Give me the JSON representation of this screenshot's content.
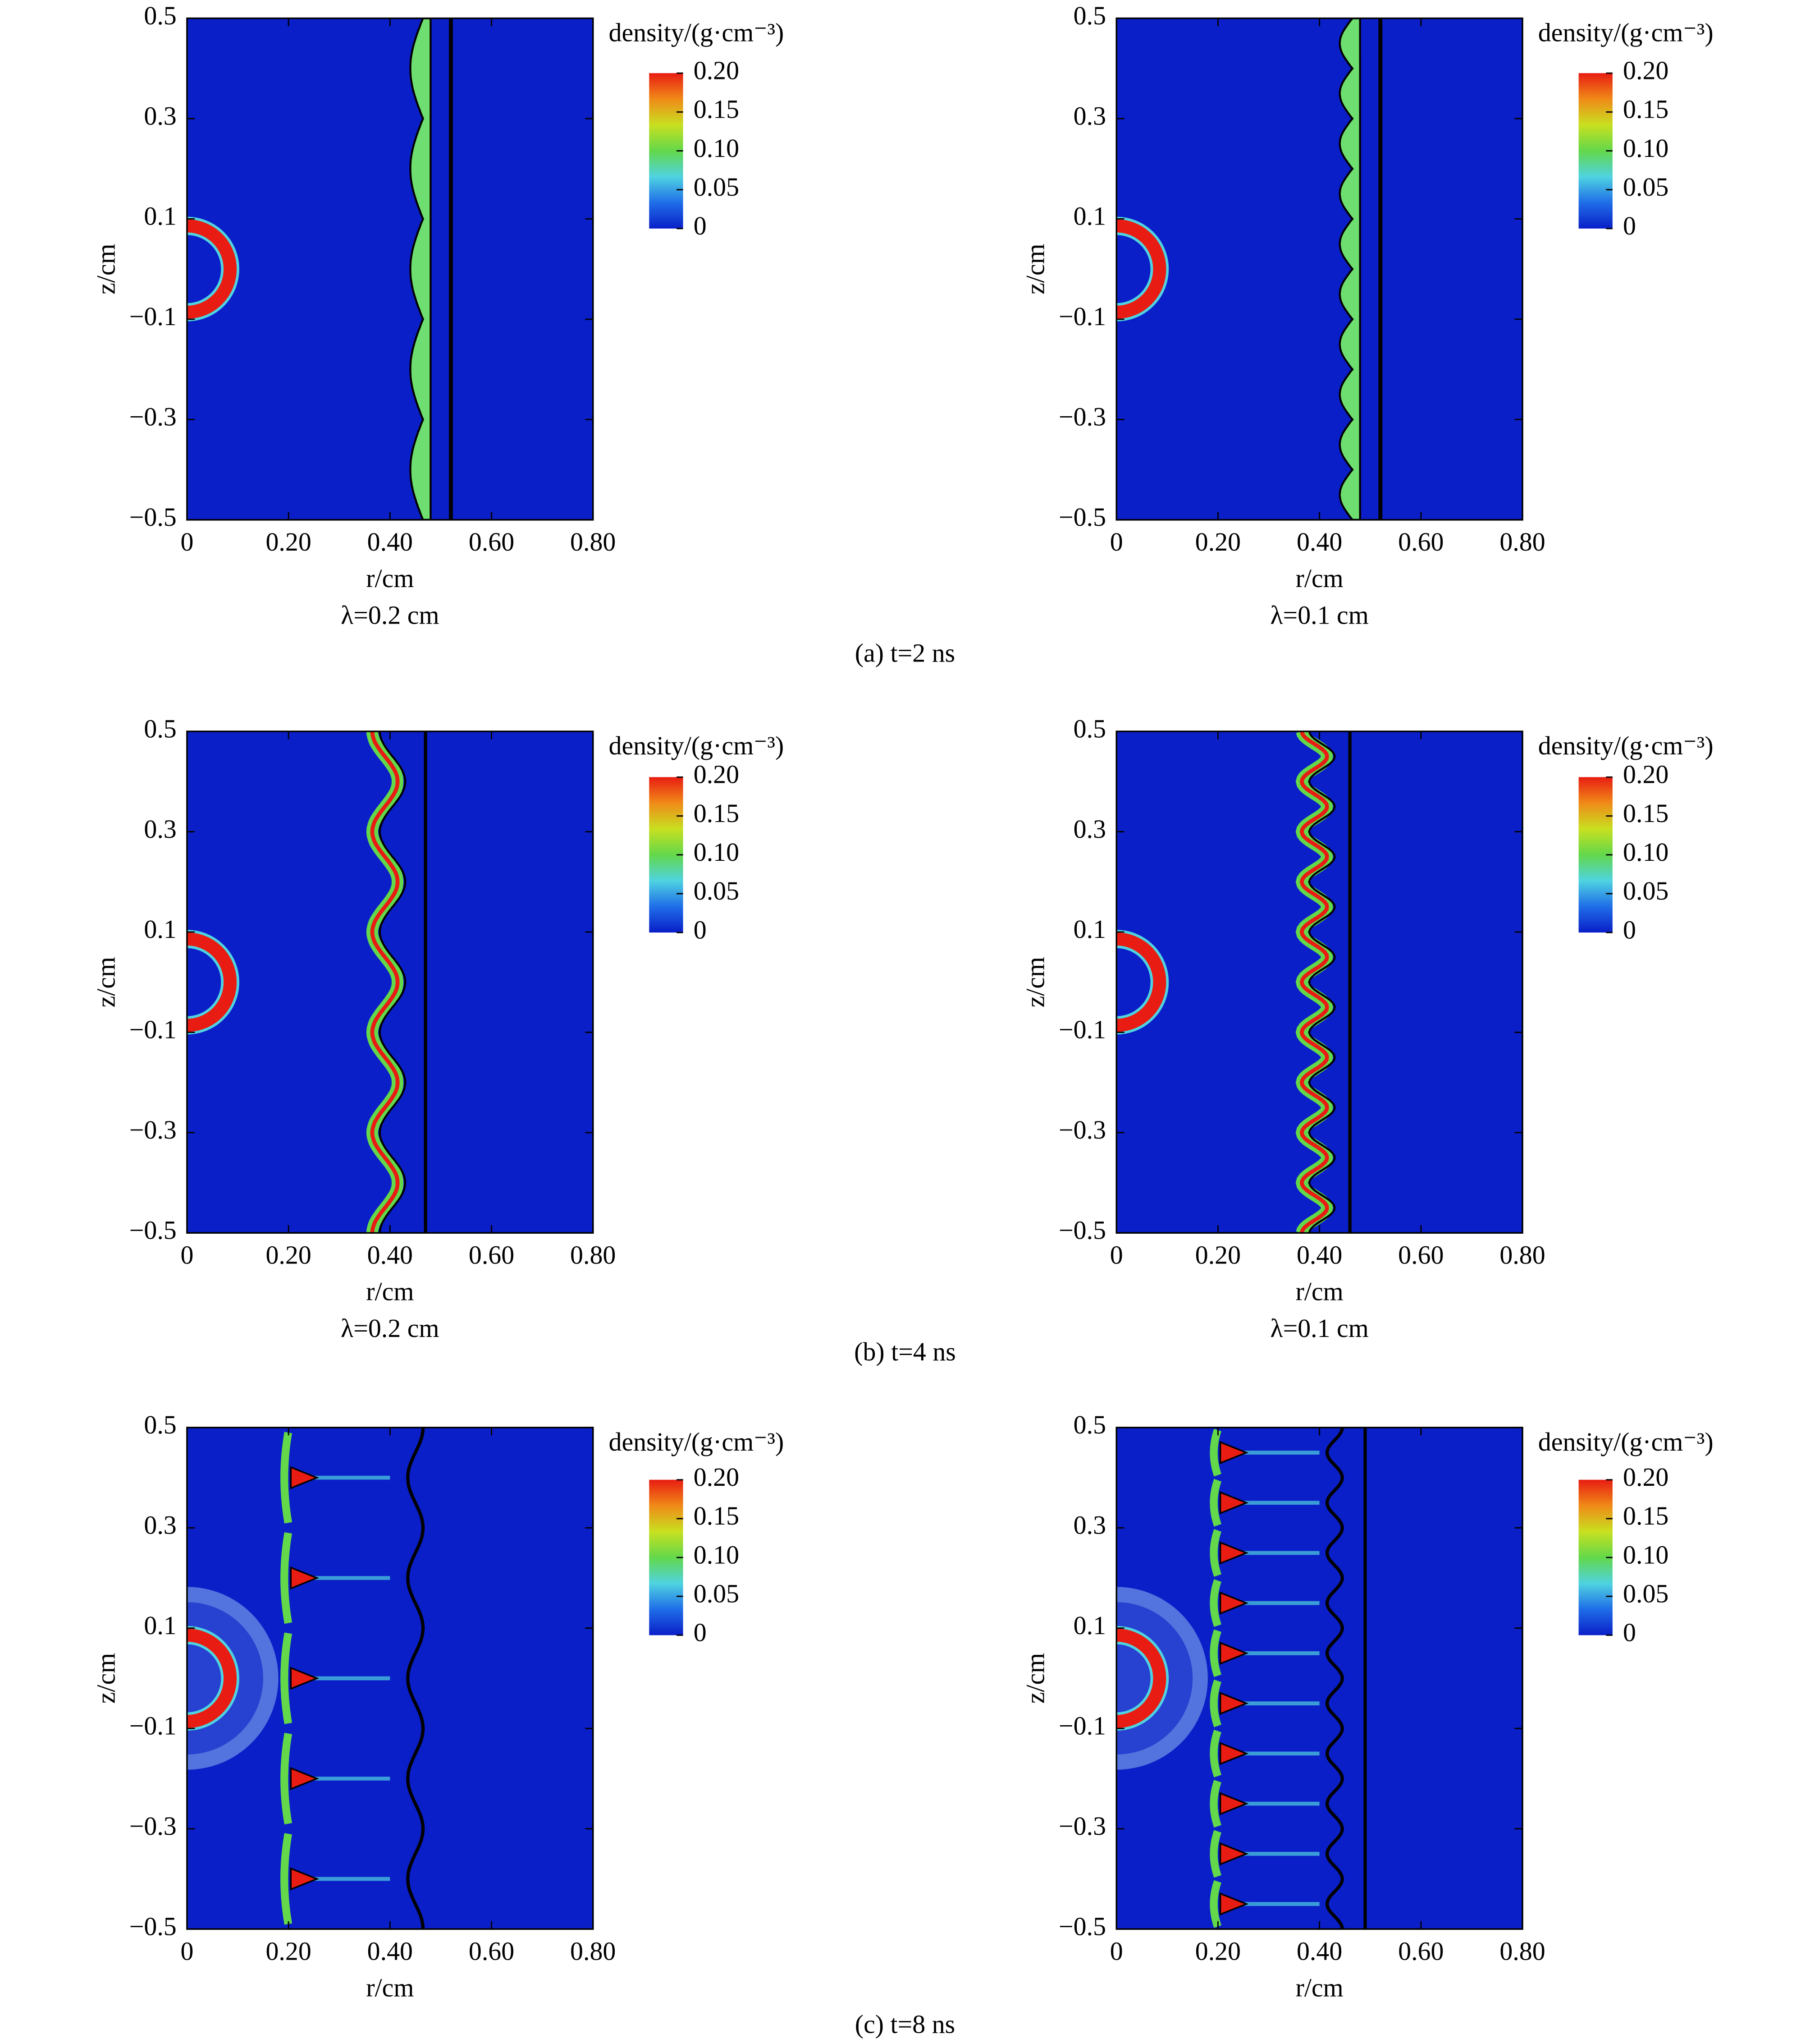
{
  "chart_data": [
    {
      "type": "heatmap",
      "xlabel": "r/cm",
      "ylabel": "z/cm",
      "subtitle": "λ=0.2 cm",
      "xlim": [
        0,
        0.8
      ],
      "xticks": [
        0,
        {
          "value": 0.2,
          "label": "0.20"
        },
        {
          "value": 0.4,
          "label": "0.40"
        },
        {
          "value": 0.6,
          "label": "0.60"
        },
        {
          "value": 0.8,
          "label": "0.80"
        }
      ],
      "ylim": [
        -0.5,
        0.5
      ],
      "yticks": [
        {
          "value": -0.5,
          "label": "−0.5"
        },
        {
          "value": -0.3,
          "label": "−0.3"
        },
        {
          "value": -0.1,
          "label": "−0.1"
        },
        0.1,
        0.3,
        0.5
      ],
      "colorbar": {
        "title": "density/(g·cm⁻³)",
        "lim": [
          0,
          0.2
        ],
        "ticks": [
          0,
          0.05,
          {
            "value": 0.1,
            "label": "0.10"
          },
          0.15,
          {
            "value": 0.2,
            "label": "0.20"
          }
        ],
        "colormap": [
          "#0a1fc8",
          "#1f6ee8",
          "#4fd3e0",
          "#63d84a",
          "#c8e020",
          "#f08a18",
          "#e81c12"
        ]
      }
    },
    {
      "type": "heatmap",
      "xlabel": "r/cm",
      "ylabel": "z/cm",
      "subtitle": "λ=0.1 cm",
      "xlim": [
        0,
        0.8
      ],
      "xticks": [
        0,
        {
          "value": 0.2,
          "label": "0.20"
        },
        {
          "value": 0.4,
          "label": "0.40"
        },
        {
          "value": 0.6,
          "label": "0.60"
        },
        {
          "value": 0.8,
          "label": "0.80"
        }
      ],
      "ylim": [
        -0.5,
        0.5
      ],
      "yticks": [
        {
          "value": -0.5,
          "label": "−0.5"
        },
        {
          "value": -0.3,
          "label": "−0.3"
        },
        {
          "value": -0.1,
          "label": "−0.1"
        },
        0.1,
        0.3,
        0.5
      ],
      "colorbar": {
        "title": "density/(g·cm⁻³)",
        "lim": [
          0,
          0.2
        ],
        "ticks": [
          0,
          0.05,
          {
            "value": 0.1,
            "label": "0.10"
          },
          0.15,
          {
            "value": 0.2,
            "label": "0.20"
          }
        ],
        "colormap": [
          "#0a1fc8",
          "#1f6ee8",
          "#4fd3e0",
          "#63d84a",
          "#c8e020",
          "#f08a18",
          "#e81c12"
        ]
      }
    },
    {
      "type": "heatmap",
      "xlabel": "r/cm",
      "ylabel": "z/cm",
      "subtitle": "λ=0.2 cm",
      "xlim": [
        0,
        0.8
      ],
      "xticks": [
        0,
        {
          "value": 0.2,
          "label": "0.20"
        },
        {
          "value": 0.4,
          "label": "0.40"
        },
        {
          "value": 0.6,
          "label": "0.60"
        },
        {
          "value": 0.8,
          "label": "0.80"
        }
      ],
      "ylim": [
        -0.5,
        0.5
      ],
      "yticks": [
        {
          "value": -0.5,
          "label": "−0.5"
        },
        {
          "value": -0.3,
          "label": "−0.3"
        },
        {
          "value": -0.1,
          "label": "−0.1"
        },
        0.1,
        0.3,
        0.5
      ],
      "colorbar": {
        "title": "density/(g·cm⁻³)",
        "lim": [
          0,
          0.2
        ],
        "ticks": [
          0,
          0.05,
          {
            "value": 0.1,
            "label": "0.10"
          },
          0.15,
          {
            "value": 0.2,
            "label": "0.20"
          }
        ],
        "colormap": [
          "#0a1fc8",
          "#1f6ee8",
          "#4fd3e0",
          "#63d84a",
          "#c8e020",
          "#f08a18",
          "#e81c12"
        ]
      }
    },
    {
      "type": "heatmap",
      "xlabel": "r/cm",
      "ylabel": "z/cm",
      "subtitle": "λ=0.1 cm",
      "xlim": [
        0,
        0.8
      ],
      "xticks": [
        0,
        {
          "value": 0.2,
          "label": "0.20"
        },
        {
          "value": 0.4,
          "label": "0.40"
        },
        {
          "value": 0.6,
          "label": "0.60"
        },
        {
          "value": 0.8,
          "label": "0.80"
        }
      ],
      "ylim": [
        -0.5,
        0.5
      ],
      "yticks": [
        {
          "value": -0.5,
          "label": "−0.5"
        },
        {
          "value": -0.3,
          "label": "−0.3"
        },
        {
          "value": -0.1,
          "label": "−0.1"
        },
        0.1,
        0.3,
        0.5
      ],
      "colorbar": {
        "title": "density/(g·cm⁻³)",
        "lim": [
          0,
          0.2
        ],
        "ticks": [
          0,
          0.05,
          {
            "value": 0.1,
            "label": "0.10"
          },
          0.15,
          {
            "value": 0.2,
            "label": "0.20"
          }
        ],
        "colormap": [
          "#0a1fc8",
          "#1f6ee8",
          "#4fd3e0",
          "#63d84a",
          "#c8e020",
          "#f08a18",
          "#e81c12"
        ]
      }
    },
    {
      "type": "heatmap",
      "xlabel": "r/cm",
      "ylabel": "z/cm",
      "xlim": [
        0,
        0.8
      ],
      "xticks": [
        0,
        {
          "value": 0.2,
          "label": "0.20"
        },
        {
          "value": 0.4,
          "label": "0.40"
        },
        {
          "value": 0.6,
          "label": "0.60"
        },
        {
          "value": 0.8,
          "label": "0.80"
        }
      ],
      "ylim": [
        -0.5,
        0.5
      ],
      "yticks": [
        {
          "value": -0.5,
          "label": "−0.5"
        },
        {
          "value": -0.3,
          "label": "−0.3"
        },
        {
          "value": -0.1,
          "label": "−0.1"
        },
        0.1,
        0.3,
        0.5
      ],
      "colorbar": {
        "title": "density/(g·cm⁻³)",
        "lim": [
          0,
          0.2
        ],
        "ticks": [
          0,
          0.05,
          {
            "value": 0.1,
            "label": "0.10"
          },
          0.15,
          {
            "value": 0.2,
            "label": "0.20"
          }
        ],
        "colormap": [
          "#0a1fc8",
          "#1f6ee8",
          "#4fd3e0",
          "#63d84a",
          "#c8e020",
          "#f08a18",
          "#e81c12"
        ]
      }
    },
    {
      "type": "heatmap",
      "xlabel": "r/cm",
      "ylabel": "z/cm",
      "xlim": [
        0,
        0.8
      ],
      "xticks": [
        0,
        {
          "value": 0.2,
          "label": "0.20"
        },
        {
          "value": 0.4,
          "label": "0.40"
        },
        {
          "value": 0.6,
          "label": "0.60"
        },
        {
          "value": 0.8,
          "label": "0.80"
        }
      ],
      "ylim": [
        -0.5,
        0.5
      ],
      "yticks": [
        {
          "value": -0.5,
          "label": "−0.5"
        },
        {
          "value": -0.3,
          "label": "−0.3"
        },
        {
          "value": -0.1,
          "label": "−0.1"
        },
        0.1,
        0.3,
        0.5
      ],
      "colorbar": {
        "title": "density/(g·cm⁻³)",
        "lim": [
          0,
          0.2
        ],
        "ticks": [
          0,
          0.05,
          {
            "value": 0.1,
            "label": "0.10"
          },
          0.15,
          {
            "value": 0.2,
            "label": "0.20"
          }
        ],
        "colormap": [
          "#0a1fc8",
          "#1f6ee8",
          "#4fd3e0",
          "#63d84a",
          "#c8e020",
          "#f08a18",
          "#e81c12"
        ]
      }
    }
  ],
  "captions": [
    "(a) t=2 ns",
    "(b) t=4 ns",
    "(c) t=8 ns"
  ]
}
